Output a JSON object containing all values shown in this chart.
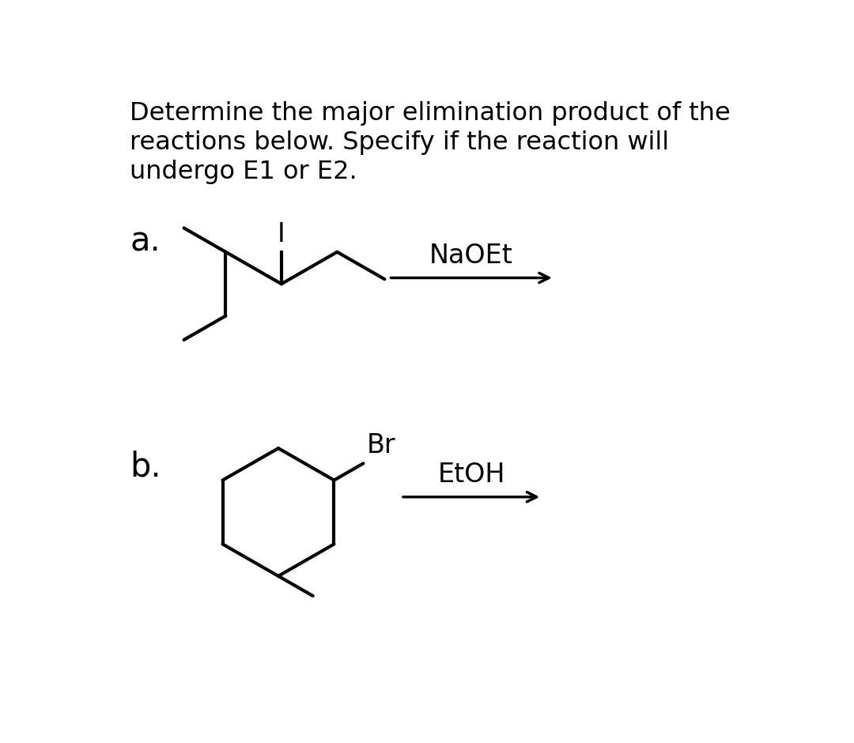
{
  "title_line1": "Determine the major elimination product of the",
  "title_line2": "reactions below. Specify if the reaction will",
  "title_line3": "undergo E1 or E2.",
  "title_fontsize": 23,
  "bg_color": "#ffffff",
  "label_a": "a.",
  "label_b": "b.",
  "label_fontsize": 30,
  "reagent_a": "NaOEt",
  "reagent_b": "EtOH",
  "halogen_a": "I",
  "halogen_b": "Br",
  "line_color": "#000000",
  "line_width": 3.0,
  "reagent_fontsize": 24
}
